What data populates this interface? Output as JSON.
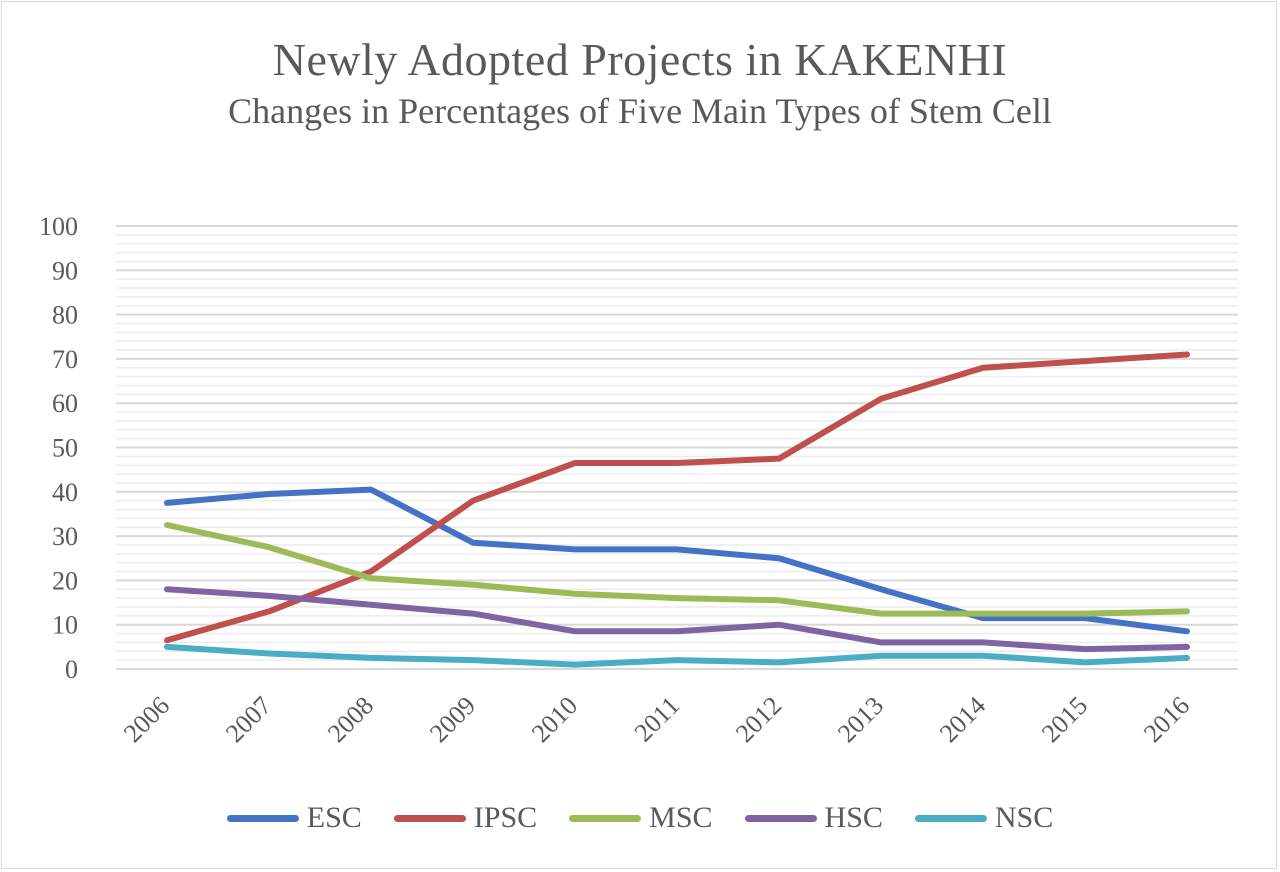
{
  "chart_data": {
    "type": "line",
    "title": "Newly Adopted Projects in KAKENHI",
    "subtitle": "Changes in Percentages of Five Main Types of Stem Cell",
    "xlabel": "",
    "ylabel": "",
    "ylim": [
      0,
      100
    ],
    "yticks": [
      "0",
      "10",
      "20",
      "30",
      "40",
      "50",
      "60",
      "70",
      "80",
      "90",
      "100"
    ],
    "categories": [
      "2006",
      "2007",
      "2008",
      "2009",
      "2010",
      "2011",
      "2012",
      "2013",
      "2014",
      "2015",
      "2016"
    ],
    "grid": "horizontal",
    "legend_position": "bottom",
    "series": [
      {
        "name": "ESC",
        "color": "#4472C4",
        "values": [
          37.5,
          39.5,
          40.5,
          28.5,
          27,
          27,
          25,
          18,
          11.5,
          11.5,
          8.5
        ]
      },
      {
        "name": "IPSC",
        "color": "#C0504D",
        "values": [
          6.5,
          13,
          22,
          38,
          46.5,
          46.5,
          47.5,
          61,
          68,
          69.5,
          71
        ]
      },
      {
        "name": "MSC",
        "color": "#9BBB59",
        "values": [
          32.5,
          27.5,
          20.5,
          19,
          17,
          16,
          15.5,
          12.5,
          12.5,
          12.5,
          13
        ]
      },
      {
        "name": "HSC",
        "color": "#8064A2",
        "values": [
          18,
          16.5,
          14.5,
          12.5,
          8.5,
          8.5,
          10,
          6,
          6,
          4.5,
          5
        ]
      },
      {
        "name": "NSC",
        "color": "#4BACC6",
        "values": [
          5,
          3.5,
          2.5,
          2,
          1,
          2,
          1.5,
          3,
          3,
          1.5,
          2.5
        ]
      }
    ]
  }
}
